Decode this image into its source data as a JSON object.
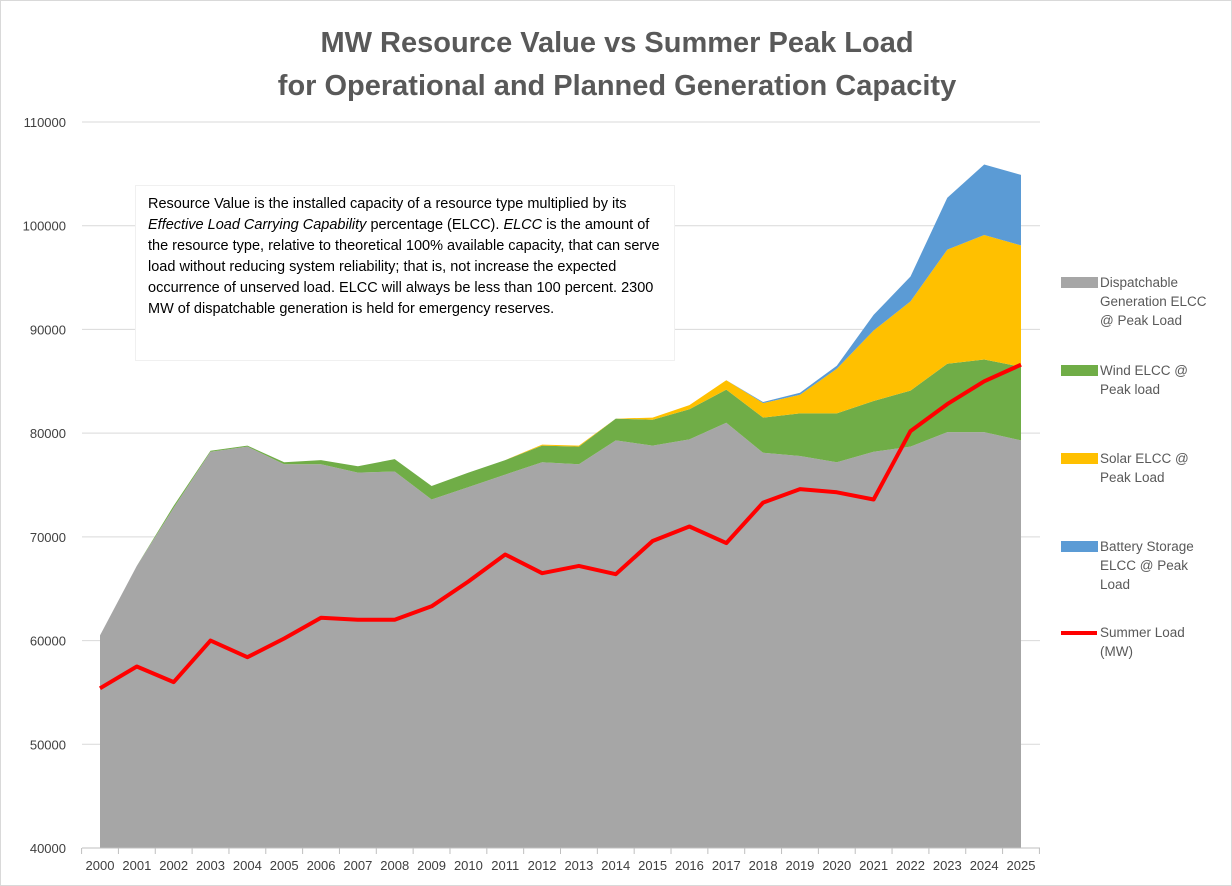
{
  "chart_data": {
    "type": "area",
    "title": "MW Resource Value vs Summer Peak Load",
    "subtitle": "for Operational and Planned Generation Capacity",
    "xlabel": "",
    "ylabel": "",
    "ylim": [
      40000,
      110000
    ],
    "yticks": [
      40000,
      50000,
      60000,
      70000,
      80000,
      90000,
      100000,
      110000
    ],
    "grid": true,
    "legend_position": "right",
    "x": [
      "2000",
      "2001",
      "2002",
      "2003",
      "2004",
      "2005",
      "2006",
      "2007",
      "2008",
      "2009",
      "2010",
      "2011",
      "2012",
      "2013",
      "2014",
      "2015",
      "2016",
      "2017",
      "2018",
      "2019",
      "2020",
      "2021",
      "2022",
      "2023",
      "2024",
      "2025"
    ],
    "series": [
      {
        "name": "Dispatchable Generation ELCC @ Peak Load",
        "kind": "stacked-area",
        "color": "#a6a6a6",
        "values": [
          60500,
          67200,
          72800,
          78200,
          78700,
          77000,
          77000,
          76200,
          76300,
          73600,
          74800,
          76000,
          77200,
          77000,
          79300,
          78800,
          79400,
          81000,
          78100,
          77800,
          77200,
          78200,
          78700,
          80100,
          80100,
          79300
        ]
      },
      {
        "name": "Wind ELCC @ Peak load",
        "kind": "stacked-area",
        "color": "#70ad47",
        "values": [
          0,
          0,
          200,
          100,
          100,
          200,
          400,
          600,
          1200,
          1300,
          1400,
          1400,
          1600,
          1700,
          2100,
          2500,
          2900,
          3200,
          3400,
          4100,
          4700,
          4900,
          5400,
          6600,
          7000,
          7100
        ]
      },
      {
        "name": "Solar ELCC @ Peak Load",
        "kind": "stacked-area",
        "color": "#ffc000",
        "values": [
          0,
          0,
          0,
          0,
          0,
          0,
          0,
          0,
          0,
          0,
          0,
          0,
          100,
          100,
          0,
          200,
          400,
          900,
          1400,
          1800,
          4300,
          6800,
          8600,
          11000,
          12000,
          11700
        ]
      },
      {
        "name": "Battery Storage ELCC @ Peak Load",
        "kind": "stacked-area",
        "color": "#5b9bd5",
        "values": [
          0,
          0,
          0,
          0,
          0,
          0,
          0,
          0,
          0,
          0,
          0,
          0,
          0,
          0,
          0,
          0,
          0,
          0,
          100,
          200,
          300,
          1500,
          2400,
          5000,
          6800,
          6800
        ]
      },
      {
        "name": "Summer Load (MW)",
        "kind": "line",
        "color": "#ff0000",
        "values": [
          55400,
          57500,
          56000,
          60000,
          58400,
          60200,
          62200,
          62000,
          62000,
          63300,
          65700,
          68300,
          66500,
          67200,
          66400,
          69600,
          71000,
          69400,
          73300,
          74600,
          74300,
          73600,
          80200,
          82800,
          85000,
          86600
        ]
      }
    ],
    "annotation": {
      "p1": "Resource Value is the installed capacity of a resource type multiplied by its ",
      "e1": "Effective Load Carrying Capability",
      "p2": " percentage (ELCC). ",
      "e2": "ELCC",
      "p3": " is the amount of the resource type, relative to theoretical 100% available capacity, that can serve load without reducing system reliability; that is, not increase the expected occurrence of unserved load. ELCC will always be less than 100 percent.  2300 MW of dispatchable generation is held for emergency reserves."
    }
  }
}
